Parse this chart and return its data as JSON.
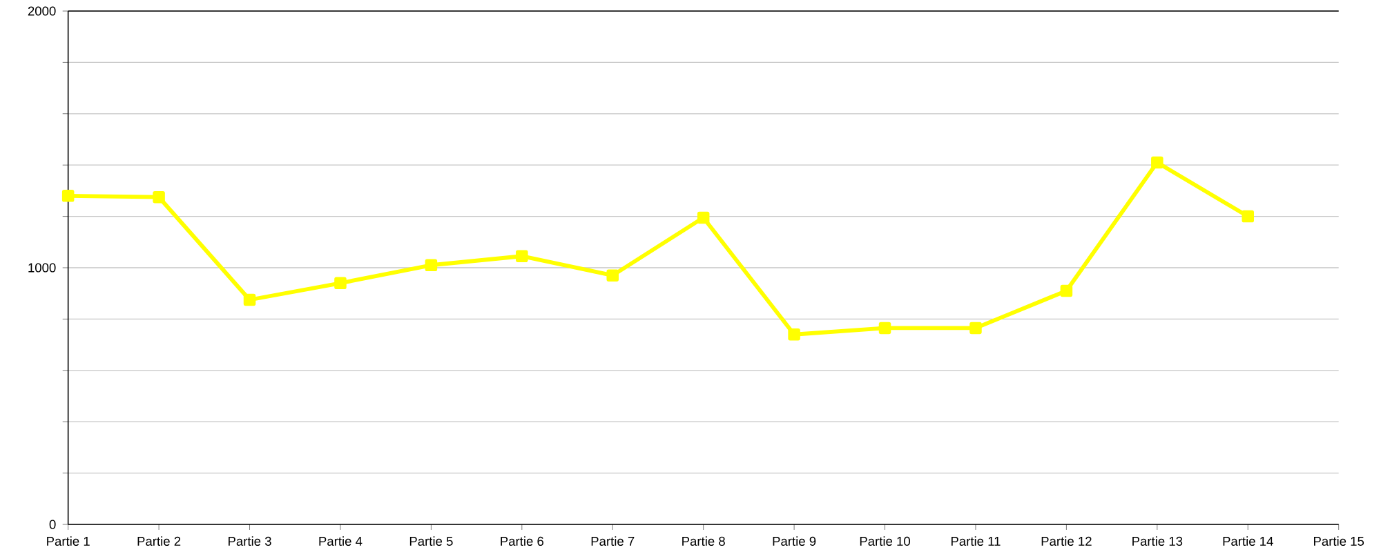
{
  "chart_data": {
    "type": "line",
    "categories": [
      "Partie 1",
      "Partie 2",
      "Partie 3",
      "Partie 4",
      "Partie 5",
      "Partie 6",
      "Partie 7",
      "Partie 8",
      "Partie 9",
      "Partie 10",
      "Partie 11",
      "Partie 12",
      "Partie 13",
      "Partie 14",
      "Partie 15"
    ],
    "series": [
      {
        "color": "#ffff00",
        "values": [
          1280,
          1275,
          875,
          940,
          1010,
          1045,
          970,
          1195,
          740,
          765,
          765,
          910,
          1410,
          1200,
          null
        ]
      }
    ],
    "ylim": [
      0,
      2000
    ],
    "yticks": [
      0,
      {
        "value": 200,
        "label": null
      },
      {
        "value": 400,
        "label": null
      },
      {
        "value": 600,
        "label": null
      },
      {
        "value": 800,
        "label": null
      },
      1000,
      {
        "value": 1200,
        "label": null
      },
      {
        "value": 1400,
        "label": null
      },
      {
        "value": 1600,
        "label": null
      },
      {
        "value": 1800,
        "label": null
      },
      2000
    ],
    "grid": "y",
    "marker": "square",
    "line_style": "solid"
  }
}
